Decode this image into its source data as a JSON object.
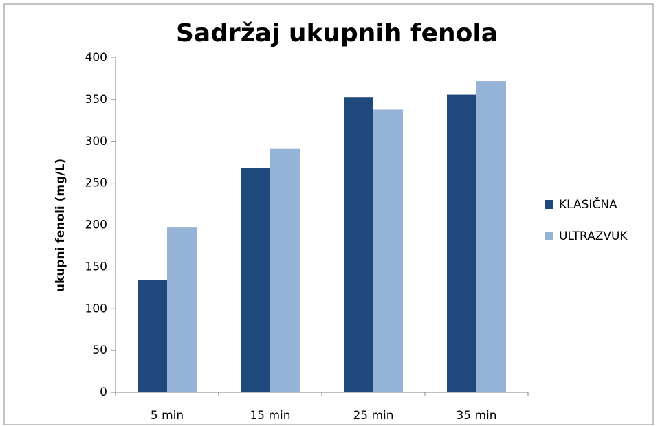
{
  "chart_data": {
    "type": "bar",
    "title": "Sadržaj ukupnih fenola",
    "y_label": "ukupni fenoli (mg/L)",
    "categories": [
      "5 min",
      "15 min",
      "25 min",
      "35 min"
    ],
    "series": [
      {
        "name": "KLASIČNA",
        "color": "#1f497d",
        "values": [
          134,
          268,
          353,
          356
        ]
      },
      {
        "name": "ULTRAZVUK",
        "color": "#95b3d7",
        "values": [
          197,
          291,
          338,
          372
        ]
      }
    ],
    "ylim": [
      0,
      400
    ],
    "yticks": [
      0,
      50,
      100,
      150,
      200,
      250,
      300,
      350,
      400
    ],
    "legend": "right"
  }
}
